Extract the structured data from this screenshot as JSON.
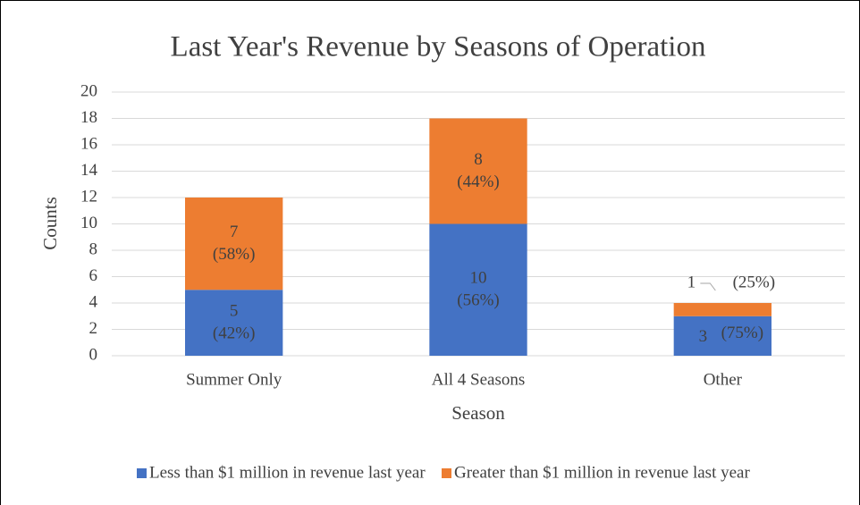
{
  "chart_data": {
    "type": "stacked_bar",
    "title": "Last Year's Revenue by Seasons of Operation",
    "x_label": "Season",
    "y_label": "Counts",
    "categories": [
      "Summer Only",
      "All 4 Seasons",
      "Other"
    ],
    "series": [
      {
        "name": "Less than $1 million in revenue last year",
        "color": "#4472c4",
        "values": [
          5,
          10,
          3
        ],
        "value_labels": [
          [
            "5",
            "(42%)"
          ],
          [
            "10",
            "(56%)"
          ],
          [
            "3",
            "(75%)"
          ]
        ]
      },
      {
        "name": "Greater than $1 million in revenue last year",
        "color": "#ed7d31",
        "values": [
          7,
          8,
          1
        ],
        "value_labels": [
          [
            "7",
            "(58%)"
          ],
          [
            "8",
            "(44%)"
          ],
          [
            "1",
            "(25%)"
          ]
        ]
      }
    ],
    "ylim": [
      0,
      20
    ],
    "yticks": [
      0,
      2,
      4,
      6,
      8,
      10,
      12,
      14,
      16,
      18,
      20
    ],
    "grid": true,
    "legend": "bottom"
  }
}
